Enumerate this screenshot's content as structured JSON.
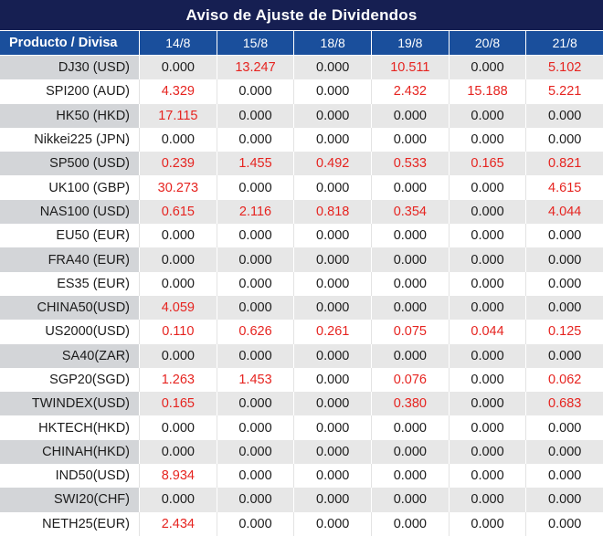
{
  "title": "Aviso de Ajuste de Dividendos",
  "colors": {
    "title_bg": "#161f52",
    "header_bg": "#1a4f9c",
    "striped_label_bg": "#d3d5d8",
    "striped_value_bg": "#e7e7e7",
    "nonzero_value_color": "#e62420",
    "zero_value_color": "#1c1c1c"
  },
  "table": {
    "header": [
      "Producto / Divisa",
      "14/8",
      "15/8",
      "18/8",
      "19/8",
      "20/8",
      "21/8"
    ],
    "rows": [
      {
        "product": "DJ30 (USD)",
        "values": [
          "0.000",
          "13.247",
          "0.000",
          "10.511",
          "0.000",
          "5.102"
        ]
      },
      {
        "product": "SPI200 (AUD)",
        "values": [
          "4.329",
          "0.000",
          "0.000",
          "2.432",
          "15.188",
          "5.221"
        ]
      },
      {
        "product": "HK50 (HKD)",
        "values": [
          "17.115",
          "0.000",
          "0.000",
          "0.000",
          "0.000",
          "0.000"
        ]
      },
      {
        "product": "Nikkei225 (JPN)",
        "values": [
          "0.000",
          "0.000",
          "0.000",
          "0.000",
          "0.000",
          "0.000"
        ]
      },
      {
        "product": "SP500 (USD)",
        "values": [
          "0.239",
          "1.455",
          "0.492",
          "0.533",
          "0.165",
          "0.821"
        ]
      },
      {
        "product": "UK100 (GBP)",
        "values": [
          "30.273",
          "0.000",
          "0.000",
          "0.000",
          "0.000",
          "4.615"
        ]
      },
      {
        "product": "NAS100 (USD)",
        "values": [
          "0.615",
          "2.116",
          "0.818",
          "0.354",
          "0.000",
          "4.044"
        ]
      },
      {
        "product": "EU50 (EUR)",
        "values": [
          "0.000",
          "0.000",
          "0.000",
          "0.000",
          "0.000",
          "0.000"
        ]
      },
      {
        "product": "FRA40 (EUR)",
        "values": [
          "0.000",
          "0.000",
          "0.000",
          "0.000",
          "0.000",
          "0.000"
        ]
      },
      {
        "product": "ES35 (EUR)",
        "values": [
          "0.000",
          "0.000",
          "0.000",
          "0.000",
          "0.000",
          "0.000"
        ]
      },
      {
        "product": "CHINA50(USD)",
        "values": [
          "4.059",
          "0.000",
          "0.000",
          "0.000",
          "0.000",
          "0.000"
        ]
      },
      {
        "product": "US2000(USD)",
        "values": [
          "0.110",
          "0.626",
          "0.261",
          "0.075",
          "0.044",
          "0.125"
        ]
      },
      {
        "product": "SA40(ZAR)",
        "values": [
          "0.000",
          "0.000",
          "0.000",
          "0.000",
          "0.000",
          "0.000"
        ]
      },
      {
        "product": "SGP20(SGD)",
        "values": [
          "1.263",
          "1.453",
          "0.000",
          "0.076",
          "0.000",
          "0.062"
        ]
      },
      {
        "product": "TWINDEX(USD)",
        "values": [
          "0.165",
          "0.000",
          "0.000",
          "0.380",
          "0.000",
          "0.683"
        ]
      },
      {
        "product": "HKTECH(HKD)",
        "values": [
          "0.000",
          "0.000",
          "0.000",
          "0.000",
          "0.000",
          "0.000"
        ]
      },
      {
        "product": "CHINAH(HKD)",
        "values": [
          "0.000",
          "0.000",
          "0.000",
          "0.000",
          "0.000",
          "0.000"
        ]
      },
      {
        "product": "IND50(USD)",
        "values": [
          "8.934",
          "0.000",
          "0.000",
          "0.000",
          "0.000",
          "0.000"
        ]
      },
      {
        "product": "SWI20(CHF)",
        "values": [
          "0.000",
          "0.000",
          "0.000",
          "0.000",
          "0.000",
          "0.000"
        ]
      },
      {
        "product": "NETH25(EUR)",
        "values": [
          "2.434",
          "0.000",
          "0.000",
          "0.000",
          "0.000",
          "0.000"
        ]
      }
    ]
  }
}
